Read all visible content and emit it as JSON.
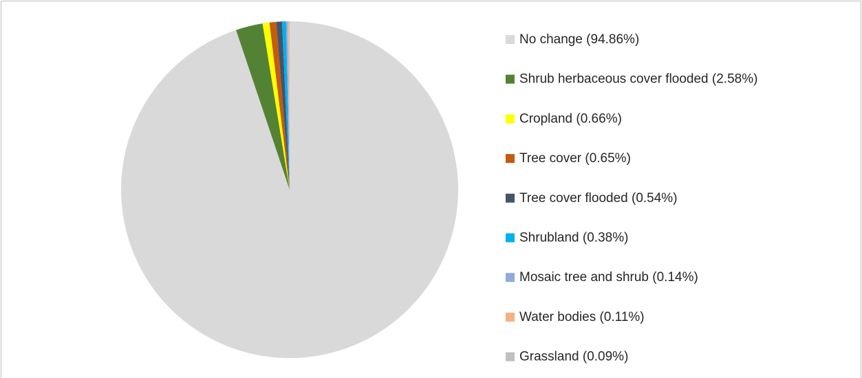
{
  "chart_data": {
    "type": "pie",
    "categories": [
      "No change (94.86%)",
      "Shrub herbaceous cover flooded (2.58%)",
      "Cropland (0.66%)",
      "Tree cover (0.65%)",
      "Tree cover flooded (0.54%)",
      "Shrubland (0.38%)",
      "Mosaic tree and shrub (0.14%)",
      "Water bodies (0.11%)",
      "Grassland (0.09%)"
    ],
    "values": [
      94.86,
      2.58,
      0.66,
      0.65,
      0.54,
      0.38,
      0.14,
      0.11,
      0.09
    ],
    "colors": [
      "#d9d9d9",
      "#548235",
      "#ffff00",
      "#c55a11",
      "#44546a",
      "#00b0f0",
      "#8faadc",
      "#f4b183",
      "#bfbfbf"
    ],
    "legend": "right"
  }
}
